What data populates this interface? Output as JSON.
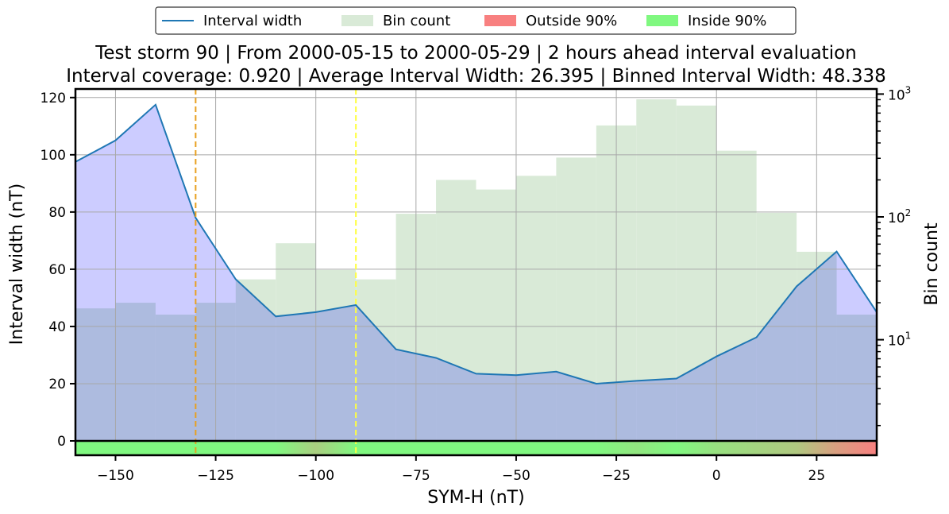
{
  "chart_data": {
    "type": "line",
    "title_lines": [
      "Test storm 90 | From 2000-05-15 to 2000-05-29 | 2 hours ahead interval evaluation",
      "Interval coverage: 0.920 | Average Interval Width: 26.395 | Binned Interval Width: 48.338"
    ],
    "xlabel": "SYM-H (nT)",
    "ylabel": "Interval width (nT)",
    "y2label": "Bin count",
    "xlim": [
      -160,
      40
    ],
    "ylim": [
      -5,
      123
    ],
    "y2_scale": "log",
    "y2lim": [
      1.5,
      1100
    ],
    "grid": true,
    "legend_position": "top-center",
    "legend": [
      {
        "label": "Interval width",
        "kind": "line",
        "color": "#1f77b4"
      },
      {
        "label": "Bin count",
        "kind": "patch",
        "color": "#d9ead7"
      },
      {
        "label": "Outside 90%",
        "kind": "patch",
        "color": "#f88080"
      },
      {
        "label": "Inside 90%",
        "kind": "patch",
        "color": "#80f880"
      }
    ],
    "xticks": [
      {
        "value": -150,
        "label": "−150"
      },
      {
        "value": -125,
        "label": "−125"
      },
      {
        "value": -100,
        "label": "−100"
      },
      {
        "value": -75,
        "label": "−75"
      },
      {
        "value": -50,
        "label": "−50"
      },
      {
        "value": -25,
        "label": "−25"
      },
      {
        "value": 0,
        "label": "0"
      },
      {
        "value": 25,
        "label": "25"
      }
    ],
    "yticks": [
      0,
      20,
      40,
      60,
      80,
      100,
      120
    ],
    "y2ticks": [
      {
        "value": 10,
        "base": "10",
        "exp": "1"
      },
      {
        "value": 100,
        "base": "10",
        "exp": "2"
      },
      {
        "value": 1000,
        "base": "10",
        "exp": "3"
      }
    ],
    "interval_width": {
      "name": "Interval width",
      "x": [
        -160,
        -150,
        -140,
        -130,
        -120,
        -110,
        -100,
        -90,
        -80,
        -70,
        -60,
        -50,
        -40,
        -30,
        -20,
        -10,
        0,
        10,
        20,
        30,
        40
      ],
      "y": [
        97.5,
        105,
        117.5,
        78,
        56.5,
        43.5,
        45,
        47.5,
        32,
        29,
        23.5,
        23,
        24.2,
        20,
        21,
        21.8,
        29.5,
        36.2,
        54,
        66.2,
        45
      ]
    },
    "bin_count": {
      "name": "Bin count",
      "edges": [
        -160,
        -150,
        -140,
        -130,
        -120,
        -110,
        -100,
        -90,
        -80,
        -70,
        -60,
        -50,
        -40,
        -30,
        -20,
        -10,
        0,
        10,
        20,
        30,
        40
      ],
      "counts": [
        18,
        20,
        16,
        20,
        31,
        61,
        37,
        31,
        106,
        200,
        167,
        216,
        304,
        555,
        906,
        806,
        346,
        108,
        52,
        16
      ]
    },
    "vertical_lines": [
      {
        "x": -130,
        "color": "#e8a020"
      },
      {
        "x": -90,
        "color": "#ffff40"
      }
    ],
    "coverage_strip": {
      "colors": {
        "inside": "#80f880",
        "outside": "#f88080"
      },
      "stops": [
        {
          "x": -160,
          "outside_fraction": 0
        },
        {
          "x": -130,
          "outside_fraction": 0
        },
        {
          "x": -110,
          "outside_fraction": 0
        },
        {
          "x": -100,
          "outside_fraction": 0.35
        },
        {
          "x": -90,
          "outside_fraction": 0
        },
        {
          "x": -30,
          "outside_fraction": 0
        },
        {
          "x": -20,
          "outside_fraction": 0.15
        },
        {
          "x": -10,
          "outside_fraction": 0
        },
        {
          "x": 0,
          "outside_fraction": 0.2
        },
        {
          "x": 20,
          "outside_fraction": 0.4
        },
        {
          "x": 30,
          "outside_fraction": 0.75
        },
        {
          "x": 40,
          "outside_fraction": 1
        }
      ]
    }
  }
}
